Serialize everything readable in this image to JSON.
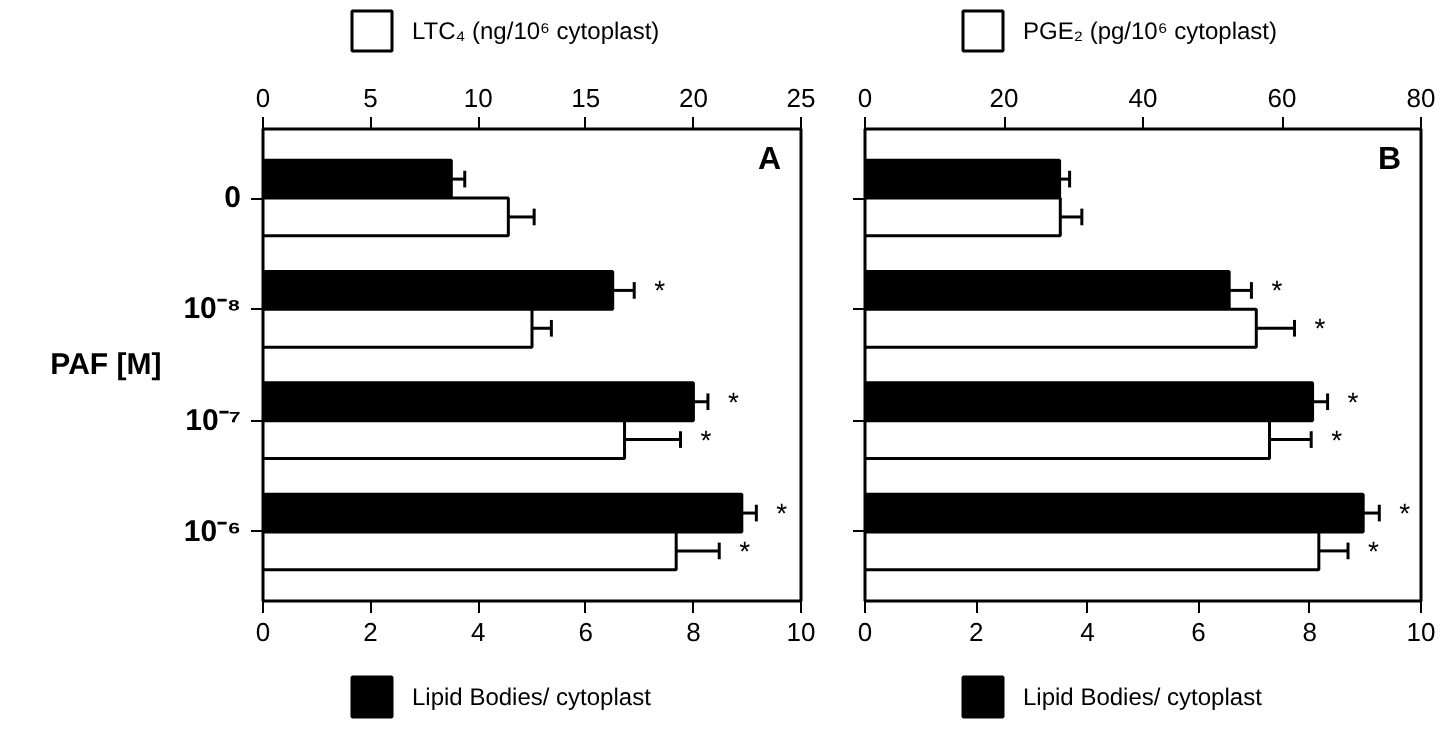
{
  "chart_data": [
    {
      "type": "bar",
      "orientation": "horizontal",
      "categories": [
        "0",
        "10⁻⁸",
        "10⁻⁷",
        "10⁻⁶"
      ],
      "ylabel": "PAF [M]",
      "annotations": [
        "A"
      ],
      "xlim": [
        0,
        10
      ],
      "xticks": [
        0,
        2,
        4,
        6,
        8,
        10
      ],
      "x2lim": [
        0,
        25
      ],
      "x2ticks": [
        0,
        5,
        10,
        15,
        20,
        25
      ],
      "legend": "top",
      "grid": false,
      "series": [
        {
          "name": "Lipid Bodies/ cytoplast",
          "color": "#000000",
          "values": [
            3.5,
            6.5,
            8.0,
            8.9
          ],
          "errors": [
            [
              3.5,
              3.75
            ],
            [
              6.5,
              6.9
            ],
            [
              8.0,
              8.27
            ],
            [
              8.9,
              9.17
            ]
          ],
          "value_labels": [
            null,
            "*",
            "*",
            "*"
          ]
        },
        {
          "name": "LTC₄ (ng/10⁶ cytoplast)",
          "color": "#ffffff",
          "axis": "x2",
          "values": [
            11.4,
            12.5,
            16.8,
            19.2
          ],
          "errors": [
            [
              11.4,
              12.6
            ],
            [
              12.5,
              13.4
            ],
            [
              16.8,
              19.4
            ],
            [
              19.2,
              21.2
            ]
          ],
          "value_labels": [
            null,
            null,
            "*",
            "*"
          ]
        }
      ]
    },
    {
      "type": "bar",
      "orientation": "horizontal",
      "categories": [
        null,
        null,
        null,
        null
      ],
      "annotations": [
        "B"
      ],
      "xlim": [
        0,
        10
      ],
      "xticks": [
        0,
        2,
        4,
        6,
        8,
        10
      ],
      "x2lim": [
        0,
        80
      ],
      "x2ticks": [
        0,
        20,
        40,
        60,
        80
      ],
      "legend": "top",
      "grid": false,
      "series": [
        {
          "name": "Lipid Bodies/ cytoplast",
          "color": "#000000",
          "values": [
            3.5,
            6.55,
            8.05,
            8.96
          ],
          "errors": [
            [
              3.5,
              3.68
            ],
            [
              6.55,
              6.95
            ],
            [
              8.05,
              8.32
            ],
            [
              8.96,
              9.25
            ]
          ],
          "value_labels": [
            null,
            "*",
            "*",
            "*"
          ]
        },
        {
          "name": "PGE₂ (pg/10⁶ cytoplast)",
          "color": "#ffffff",
          "axis": "x2",
          "values": [
            28.1,
            56.3,
            58.2,
            65.3
          ],
          "errors": [
            [
              28.1,
              31.2
            ],
            [
              56.3,
              61.8
            ],
            [
              58.2,
              64.2
            ],
            [
              65.3,
              69.5
            ]
          ],
          "value_labels": [
            null,
            "*",
            "*",
            "*"
          ]
        }
      ]
    }
  ]
}
